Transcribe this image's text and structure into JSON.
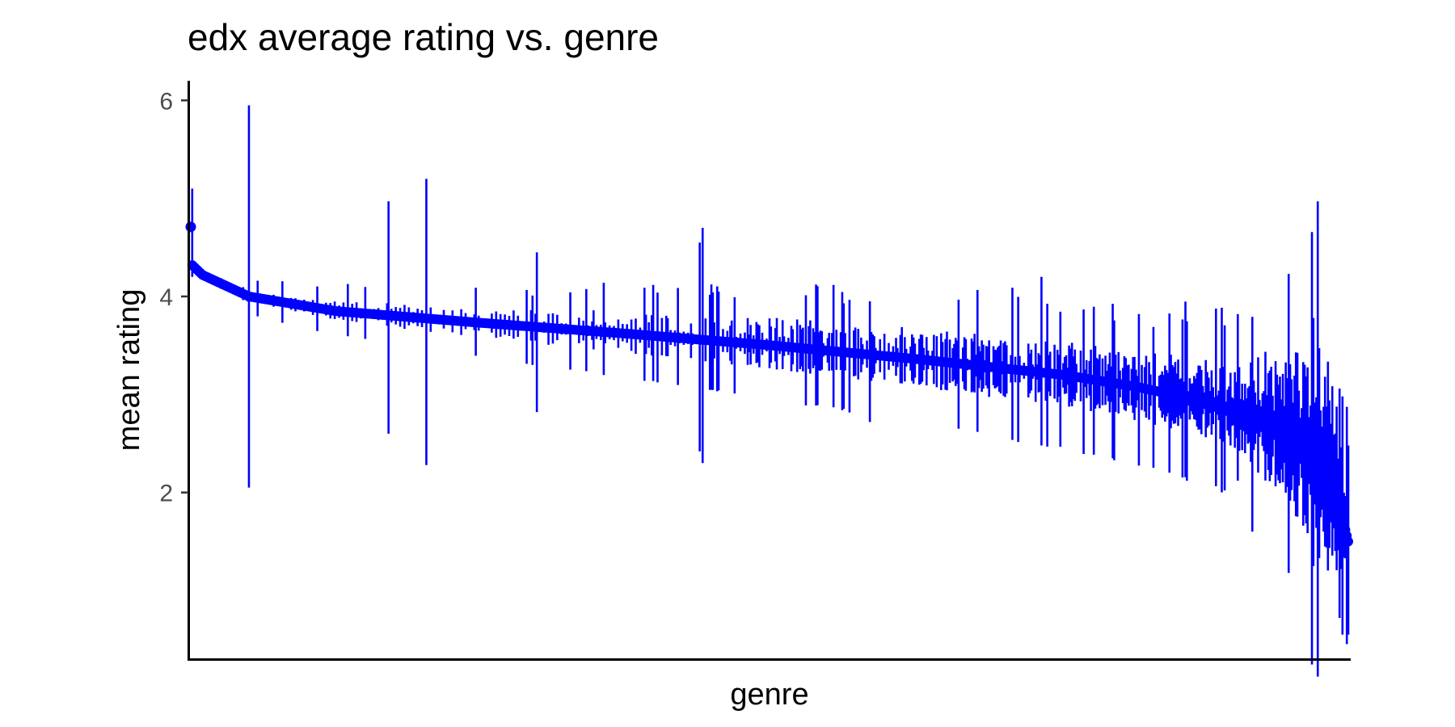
{
  "chart_data": {
    "type": "scatter",
    "title": "edx average rating vs. genre",
    "xlabel": "genre",
    "ylabel": "mean rating",
    "ylim": [
      0.3,
      6.2
    ],
    "yticks": [
      2,
      4,
      6
    ],
    "x_ticks_shown": false,
    "grid": false,
    "series_color": "#0000ff",
    "n_genres": 797,
    "error_bars": true,
    "mean_rating_profile": [
      {
        "genre_index": 0,
        "mean": 4.71
      },
      {
        "genre_index": 1,
        "mean": 4.32
      },
      {
        "genre_index": 8,
        "mean": 4.22
      },
      {
        "genre_index": 40,
        "mean": 4.0
      },
      {
        "genre_index": 100,
        "mean": 3.85
      },
      {
        "genre_index": 200,
        "mean": 3.73
      },
      {
        "genre_index": 300,
        "mean": 3.62
      },
      {
        "genre_index": 400,
        "mean": 3.5
      },
      {
        "genre_index": 500,
        "mean": 3.36
      },
      {
        "genre_index": 600,
        "mean": 3.2
      },
      {
        "genre_index": 650,
        "mean": 3.08
      },
      {
        "genre_index": 700,
        "mean": 2.92
      },
      {
        "genre_index": 740,
        "mean": 2.72
      },
      {
        "genre_index": 770,
        "mean": 2.45
      },
      {
        "genre_index": 785,
        "mean": 2.15
      },
      {
        "genre_index": 796,
        "mean": 1.5
      }
    ],
    "notable_error_bars": [
      {
        "genre_index": 1,
        "low": 4.2,
        "high": 5.1
      },
      {
        "genre_index": 40,
        "low": 2.05,
        "high": 5.95
      },
      {
        "genre_index": 136,
        "low": 2.6,
        "high": 4.97
      },
      {
        "genre_index": 162,
        "low": 2.28,
        "high": 5.2
      },
      {
        "genre_index": 238,
        "low": 2.82,
        "high": 4.45
      },
      {
        "genre_index": 350,
        "low": 2.42,
        "high": 4.55
      },
      {
        "genre_index": 352,
        "low": 2.3,
        "high": 4.7
      },
      {
        "genre_index": 467,
        "low": 2.72,
        "high": 3.95
      },
      {
        "genre_index": 585,
        "low": 2.48,
        "high": 4.2
      },
      {
        "genre_index": 720,
        "low": 2.12,
        "high": 3.82
      },
      {
        "genre_index": 755,
        "low": 1.18,
        "high": 4.23
      },
      {
        "genre_index": 772,
        "low": 1.25,
        "high": 3.78
      },
      {
        "genre_index": 792,
        "low": 0.55,
        "high": 2.98
      },
      {
        "genre_index": 796,
        "low": 0.55,
        "high": 2.48
      }
    ]
  }
}
